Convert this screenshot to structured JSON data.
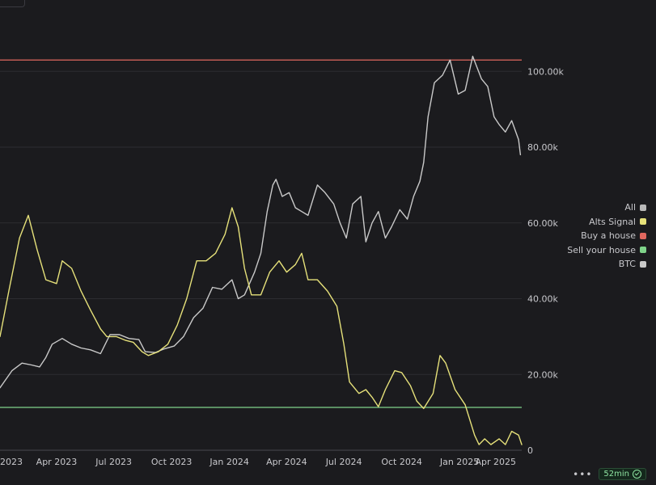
{
  "chart_data": {
    "type": "line",
    "title": "",
    "xlabel": "",
    "ylabel": "",
    "x_ticks": [
      "2023",
      "Apr 2023",
      "Jul 2023",
      "Oct 2023",
      "Jan 2024",
      "Apr 2024",
      "Jul 2024",
      "Oct 2024",
      "Jan 2025",
      "Apr 2025"
    ],
    "y_ticks": [
      "0",
      "20.00k",
      "40.00k",
      "60.00k",
      "80.00k",
      "100.00k"
    ],
    "x_range": [
      "2023-01-01",
      "2025-04-10"
    ],
    "ylim": [
      0,
      115000
    ],
    "grid": "horizontal",
    "legend_position": "right",
    "legend": [
      {
        "label": "All",
        "color": "#b9b9b9"
      },
      {
        "label": "Alts Signal",
        "color": "#e6e17a"
      },
      {
        "label": "Buy a house",
        "color": "#e0675f"
      },
      {
        "label": "Sell your house",
        "color": "#7fd38a"
      },
      {
        "label": "BTC",
        "color": "#c9c9c9"
      }
    ],
    "series": [
      {
        "name": "Buy a house",
        "color": "#e0675f",
        "type": "hline",
        "value": 103000
      },
      {
        "name": "Sell your house",
        "color": "#7fd38a",
        "type": "hline",
        "value": 11300
      },
      {
        "name": "BTC",
        "color": "#c9c9c9",
        "x": [
          "2023-01-01",
          "2023-01-20",
          "2023-02-05",
          "2023-02-20",
          "2023-03-05",
          "2023-03-15",
          "2023-03-25",
          "2023-04-10",
          "2023-04-25",
          "2023-05-10",
          "2023-05-25",
          "2023-06-10",
          "2023-06-25",
          "2023-07-10",
          "2023-07-25",
          "2023-08-10",
          "2023-08-20",
          "2023-09-05",
          "2023-09-20",
          "2023-10-05",
          "2023-10-20",
          "2023-11-05",
          "2023-11-20",
          "2023-12-05",
          "2023-12-20",
          "2024-01-05",
          "2024-01-15",
          "2024-01-25",
          "2024-02-10",
          "2024-02-20",
          "2024-03-01",
          "2024-03-10",
          "2024-03-15",
          "2024-03-25",
          "2024-04-05",
          "2024-04-15",
          "2024-04-25",
          "2024-05-05",
          "2024-05-20",
          "2024-06-01",
          "2024-06-15",
          "2024-06-25",
          "2024-07-05",
          "2024-07-15",
          "2024-07-28",
          "2024-08-05",
          "2024-08-15",
          "2024-08-25",
          "2024-09-05",
          "2024-09-15",
          "2024-09-28",
          "2024-10-10",
          "2024-10-20",
          "2024-10-30",
          "2024-11-05",
          "2024-11-12",
          "2024-11-22",
          "2024-12-05",
          "2024-12-17",
          "2024-12-30",
          "2025-01-10",
          "2025-01-22",
          "2025-02-05",
          "2025-02-15",
          "2025-02-25",
          "2025-03-05",
          "2025-03-15",
          "2025-03-25",
          "2025-04-05",
          "2025-04-08"
        ],
        "y": [
          16500,
          21000,
          23000,
          22500,
          22000,
          24500,
          28000,
          29500,
          28000,
          27000,
          26500,
          25500,
          30500,
          30500,
          29500,
          29200,
          26000,
          25800,
          26800,
          27500,
          30000,
          35000,
          37500,
          43000,
          42500,
          45000,
          40000,
          41000,
          47000,
          52000,
          63000,
          70000,
          71500,
          67000,
          68000,
          64000,
          63000,
          62000,
          70000,
          68000,
          65000,
          60000,
          56000,
          65000,
          67000,
          55000,
          60000,
          63000,
          56000,
          59000,
          63500,
          61000,
          67000,
          71000,
          76000,
          88000,
          97000,
          99000,
          103000,
          94000,
          95000,
          104000,
          98000,
          96000,
          88000,
          86000,
          84000,
          87000,
          82000,
          78000
        ]
      },
      {
        "name": "Alts Signal",
        "color": "#e6e17a",
        "x": [
          "2023-01-01",
          "2023-01-15",
          "2023-02-01",
          "2023-02-15",
          "2023-03-01",
          "2023-03-15",
          "2023-04-01",
          "2023-04-10",
          "2023-04-25",
          "2023-05-10",
          "2023-05-25",
          "2023-06-10",
          "2023-06-20",
          "2023-07-05",
          "2023-07-20",
          "2023-08-01",
          "2023-08-15",
          "2023-08-25",
          "2023-09-10",
          "2023-09-25",
          "2023-10-10",
          "2023-10-25",
          "2023-11-10",
          "2023-11-25",
          "2023-12-10",
          "2023-12-25",
          "2024-01-05",
          "2024-01-15",
          "2024-01-25",
          "2024-02-05",
          "2024-02-20",
          "2024-03-05",
          "2024-03-20",
          "2024-04-01",
          "2024-04-15",
          "2024-04-25",
          "2024-05-05",
          "2024-05-20",
          "2024-06-05",
          "2024-06-20",
          "2024-07-01",
          "2024-07-10",
          "2024-07-25",
          "2024-08-05",
          "2024-08-15",
          "2024-08-25",
          "2024-09-05",
          "2024-09-20",
          "2024-10-01",
          "2024-10-15",
          "2024-10-25",
          "2024-11-05",
          "2024-11-20",
          "2024-12-01",
          "2024-12-10",
          "2024-12-25",
          "2025-01-10",
          "2025-01-25",
          "2025-02-01",
          "2025-02-10",
          "2025-02-20",
          "2025-03-05",
          "2025-03-15",
          "2025-03-25",
          "2025-04-05",
          "2025-04-10"
        ],
        "y": [
          30000,
          42000,
          56000,
          62000,
          53000,
          45000,
          44000,
          50000,
          48000,
          42000,
          37000,
          32000,
          30000,
          30000,
          29000,
          28500,
          26000,
          25000,
          26000,
          28000,
          33000,
          40000,
          50000,
          50000,
          52000,
          57000,
          64000,
          59000,
          48000,
          41000,
          41000,
          47000,
          50000,
          47000,
          49000,
          52000,
          45000,
          45000,
          42000,
          38000,
          28000,
          18000,
          15000,
          16000,
          14000,
          11500,
          16000,
          21000,
          20500,
          17000,
          13000,
          11000,
          15000,
          25000,
          23000,
          16000,
          12000,
          4000,
          1500,
          3000,
          1500,
          3000,
          1500,
          5000,
          4000,
          1500
        ]
      }
    ]
  },
  "footer": {
    "more_label": "•••",
    "status_label": "52min"
  }
}
